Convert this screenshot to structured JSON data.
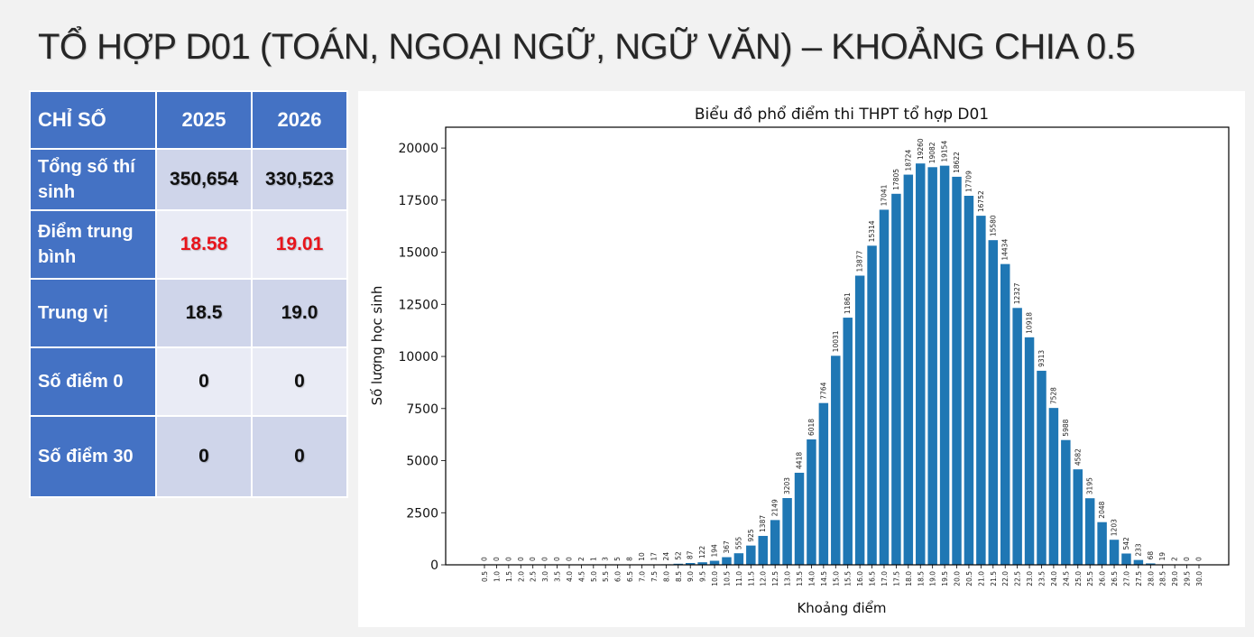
{
  "page": {
    "title": "TỔ HỢP D01 (TOÁN, NGOẠI NGỮ, NGỮ VĂN) – KHOẢNG CHIA 0.5"
  },
  "stats_table": {
    "header": {
      "label": "CHỈ SỐ",
      "y2025": "2025",
      "y2026": "2026"
    },
    "rows": [
      {
        "label": "Tổng số thí sinh",
        "v2025": "350,654",
        "v2026": "330,523"
      },
      {
        "label": "Điểm trung bình",
        "v2025": "18.58",
        "v2026": "19.01"
      },
      {
        "label": "Trung vị",
        "v2025": "18.5",
        "v2026": "19.0"
      },
      {
        "label": "Số điểm 0",
        "v2025": "0",
        "v2026": "0"
      },
      {
        "label": "Số điểm 30",
        "v2025": "0",
        "v2026": "0"
      }
    ]
  },
  "colors": {
    "header_blue": "#4472c4",
    "cell_dark": "#cfd5ea",
    "cell_light": "#e9ebf5",
    "highlight_red": "#e8141b",
    "bar_blue": "#1f77b4"
  },
  "chart_data": {
    "type": "bar",
    "title": "Biểu đồ phổ điểm thi THPT tổ hợp D01",
    "xlabel": "Khoảng điểm",
    "ylabel": "Số lượng học sinh",
    "ylim": [
      0,
      21000
    ],
    "yticks": [
      "0",
      "2500",
      "5000",
      "7500",
      "10000",
      "12500",
      "15000",
      "17500",
      "20000"
    ],
    "categories": [
      "0.5",
      "1.0",
      "1.5",
      "2.0",
      "2.5",
      "3.0",
      "3.5",
      "4.0",
      "4.5",
      "5.0",
      "5.5",
      "6.0",
      "6.5",
      "7.0",
      "7.5",
      "8.0",
      "8.5",
      "9.0",
      "9.5",
      "10.0",
      "10.5",
      "11.0",
      "11.5",
      "12.0",
      "12.5",
      "13.0",
      "13.5",
      "14.0",
      "14.5",
      "15.0",
      "15.5",
      "16.0",
      "16.5",
      "17.0",
      "17.5",
      "18.0",
      "18.5",
      "19.0",
      "19.5",
      "20.0",
      "20.5",
      "21.0",
      "21.5",
      "22.0",
      "22.5",
      "23.0",
      "23.5",
      "24.0",
      "24.5",
      "25.0",
      "25.5",
      "26.0",
      "26.5",
      "27.0",
      "27.5",
      "28.0",
      "28.5",
      "29.0",
      "29.5",
      "30.0"
    ],
    "values": [
      0,
      0,
      0,
      0,
      0,
      0,
      0,
      0,
      2,
      1,
      3,
      5,
      8,
      10,
      17,
      24,
      52,
      87,
      122,
      194,
      367,
      555,
      925,
      1387,
      2149,
      3203,
      4418,
      6018,
      7764,
      10031,
      11861,
      13877,
      15314,
      17041,
      17805,
      18724,
      19260,
      19082,
      19154,
      18622,
      17709,
      16752,
      15580,
      14434,
      12327,
      10918,
      9313,
      7528,
      5988,
      4582,
      3195,
      2048,
      1203,
      542,
      233,
      68,
      19,
      2,
      0,
      0
    ],
    "grid": false,
    "legend": "none"
  }
}
